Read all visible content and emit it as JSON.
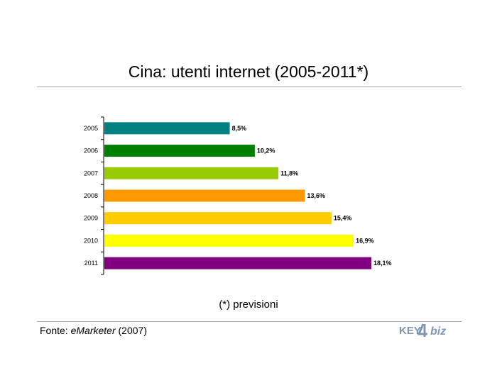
{
  "title": "Cina: utenti internet (2005-2011*)",
  "note": "(*) previsioni",
  "source": {
    "prefix": "Fonte: ",
    "name": "eMarketer",
    "suffix": " (2007)"
  },
  "logo": {
    "text_left": "KEY",
    "text_right": "biz",
    "color": "#7f97b3"
  },
  "chart_data": {
    "type": "bar",
    "orientation": "horizontal",
    "categories": [
      "2005",
      "2006",
      "2007",
      "2008",
      "2009",
      "2010",
      "2011"
    ],
    "values": [
      8.5,
      10.2,
      11.8,
      13.6,
      15.4,
      16.9,
      18.1
    ],
    "value_labels": [
      "8,5%",
      "10,2%",
      "11,8%",
      "13,6%",
      "15,4%",
      "16,9%",
      "18,1%"
    ],
    "colors": [
      "#008080",
      "#008000",
      "#99cc00",
      "#ff9900",
      "#ffcc00",
      "#ffff00",
      "#800080"
    ],
    "xlim": [
      0,
      19
    ],
    "grid": false,
    "legend": "none"
  }
}
